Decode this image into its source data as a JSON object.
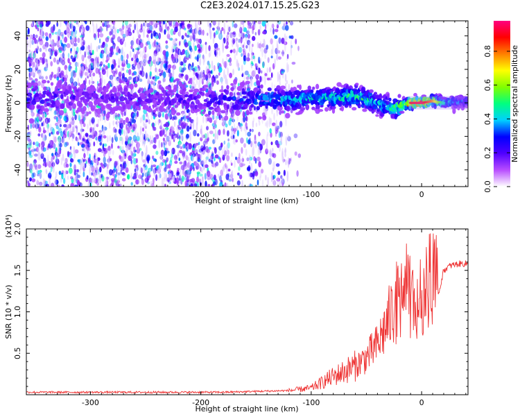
{
  "figure": {
    "title": "C2E3.2024.017.15.25.G23"
  },
  "chart_data": [
    {
      "type": "heatmap",
      "xlabel": "Height of straight line (km)",
      "ylabel": "Frequency (Hz)",
      "xlim": [
        -358,
        42
      ],
      "ylim": [
        -50,
        49
      ],
      "xticks": [
        -300,
        -200,
        -100,
        0
      ],
      "yticks": [
        -40,
        -20,
        0,
        20,
        40
      ],
      "colorbar": {
        "label": "Normalized spectral amplitude",
        "range": [
          0.0,
          0.98
        ],
        "ticks": [
          "0.0",
          "0.2",
          "0.4",
          "0.6",
          "0.8"
        ],
        "colormap": [
          "#ffffff",
          "#b84dff",
          "#5000ff",
          "#0000ff",
          "#00d0ff",
          "#00ff80",
          "#80ff00",
          "#ffff00",
          "#ff8000",
          "#ff0000",
          "#ff0080"
        ]
      },
      "ridge": {
        "description_points_x": [
          -358,
          -300,
          -200,
          -120,
          -80,
          -60,
          -45,
          -35,
          -25,
          -10,
          0,
          10,
          20,
          42
        ],
        "frequency_hz": [
          3,
          3,
          2,
          2,
          3,
          4,
          1,
          -2,
          -3,
          0,
          0,
          1,
          0,
          1
        ],
        "peak_amplitude": [
          0.3,
          0.2,
          0.25,
          0.45,
          0.5,
          0.55,
          0.5,
          0.45,
          0.55,
          0.9,
          0.95,
          0.8,
          0.45,
          0.35
        ]
      },
      "scatter_density": {
        "region_x": [
          -358,
          -130
        ],
        "region_y": [
          -50,
          49
        ]
      }
    },
    {
      "type": "line",
      "xlabel": "Height of straight line (km)",
      "ylabel": "SNR (10 * v/v)",
      "yscale_label": "(x10⁴)",
      "xlim": [
        -358,
        42
      ],
      "ylim": [
        0,
        2.0
      ],
      "xticks": [
        -300,
        -200,
        -100,
        0
      ],
      "yticks": [
        "0.5",
        "1.0",
        "1.5",
        "2.0"
      ],
      "color": "#ee3333",
      "series": [
        {
          "x": [
            -358,
            -300,
            -250,
            -200,
            -180,
            -150,
            -120,
            -100,
            -90,
            -80,
            -70,
            -60,
            -50,
            -40,
            -30,
            -20,
            -15,
            -10,
            -5,
            0,
            5,
            10,
            15,
            20,
            25,
            30,
            35,
            42
          ],
          "y": [
            0.03,
            0.03,
            0.03,
            0.03,
            0.03,
            0.04,
            0.05,
            0.08,
            0.15,
            0.22,
            0.28,
            0.35,
            0.45,
            0.6,
            0.9,
            1.2,
            1.3,
            1.15,
            1.05,
            1.2,
            1.35,
            1.45,
            1.2,
            1.5,
            1.55,
            1.57,
            1.58,
            1.58
          ]
        }
      ]
    }
  ]
}
